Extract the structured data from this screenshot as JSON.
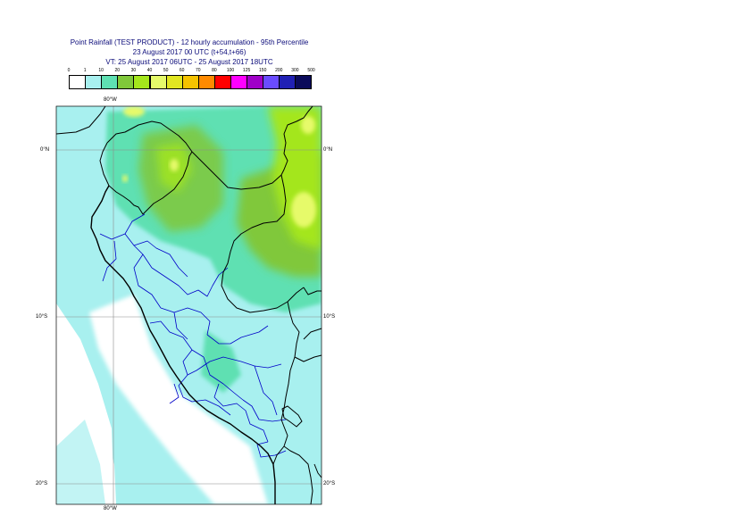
{
  "title": {
    "line1": "Point Rainfall (TEST PRODUCT) - 12 hourly accumulation - 95th Percentile",
    "line2": "23 August 2017 00 UTC (t+54,t+66)",
    "line3": "VT: 25 August 2017 06UTC - 25 August 2017 18UTC"
  },
  "legend": {
    "thresholds": [
      "0",
      "1",
      "10",
      "20",
      "30",
      "40",
      "50",
      "60",
      "70",
      "80",
      "100",
      "125",
      "150",
      "200",
      "300",
      "500"
    ],
    "colors": [
      "#ffffff",
      "#a8f0ef",
      "#5ee0b2",
      "#80c83a",
      "#a4e61c",
      "#e6fa6a",
      "#e1e621",
      "#f5c300",
      "#ff8a00",
      "#ff0000",
      "#ff00ff",
      "#a000c8",
      "#6a4cff",
      "#2020b4",
      "#0a0a5a"
    ]
  },
  "axes": {
    "lon_top": "80°W",
    "lon_bottom": "80°W",
    "lat_labels": [
      "0°N",
      "10°S",
      "20°S"
    ]
  },
  "colors": {
    "border": "#000000",
    "admin_lines": "#0000c8",
    "graticule": "#8c8c8c"
  }
}
